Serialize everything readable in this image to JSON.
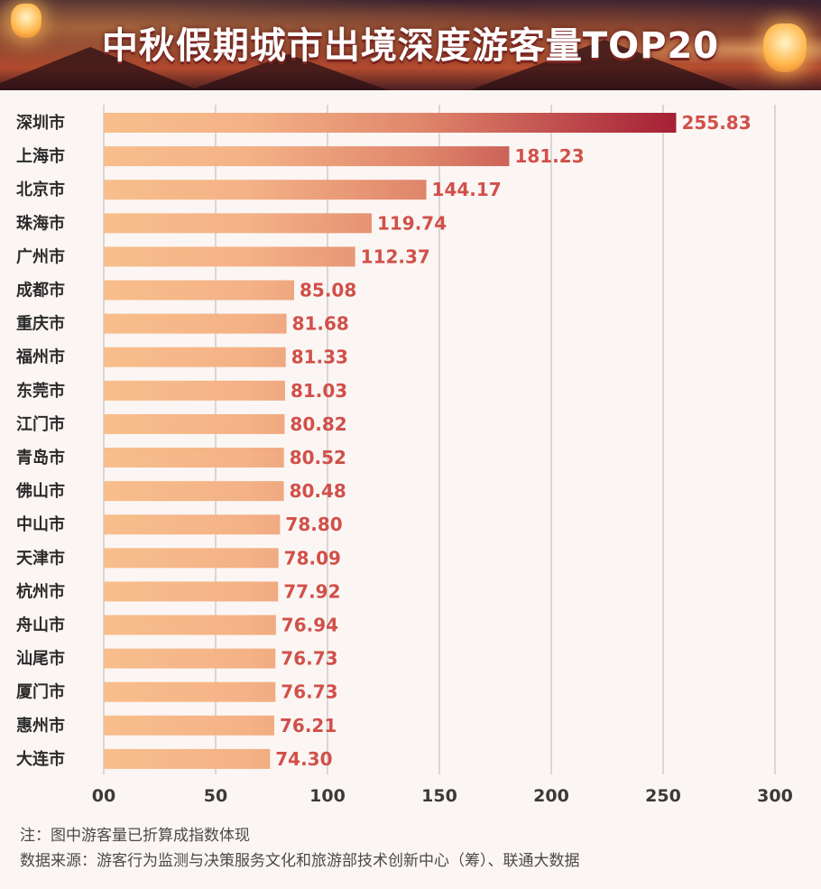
{
  "title": "中秋假期城市出境深度游客量TOP20",
  "colors": {
    "bar_light": "#f8be8c",
    "bar_dark": "#a51f35",
    "value_text": "#d1504a",
    "grid": "#dcd6d3"
  },
  "chart_data": {
    "type": "bar",
    "orientation": "horizontal",
    "title": "中秋假期城市出境深度游客量TOP20",
    "categories": [
      "深圳市",
      "上海市",
      "北京市",
      "珠海市",
      "广州市",
      "成都市",
      "重庆市",
      "福州市",
      "东莞市",
      "江门市",
      "青岛市",
      "佛山市",
      "中山市",
      "天津市",
      "杭州市",
      "舟山市",
      "汕尾市",
      "厦门市",
      "惠州市",
      "大连市"
    ],
    "values": [
      255.83,
      181.23,
      144.17,
      119.74,
      112.37,
      85.08,
      81.68,
      81.33,
      81.03,
      80.82,
      80.52,
      80.48,
      78.8,
      78.09,
      77.92,
      76.94,
      76.73,
      76.73,
      76.21,
      74.3
    ],
    "value_labels": [
      "255.83",
      "181.23",
      "144.17",
      "119.74",
      "112.37",
      "85.08",
      "81.68",
      "81.33",
      "81.03",
      "80.82",
      "80.52",
      "80.48",
      "78.80",
      "78.09",
      "77.92",
      "76.94",
      "76.73",
      "76.73",
      "76.21",
      "74.30"
    ],
    "xlim": [
      0,
      300
    ],
    "xticks": [
      0,
      50,
      100,
      150,
      200,
      250,
      300
    ],
    "xtick_labels": [
      "00",
      "50",
      "100",
      "150",
      "200",
      "250",
      "300"
    ],
    "grid": true,
    "legend": "none"
  },
  "notes": {
    "note": "注：图中游客量已折算成指数体现",
    "source": "数据来源：游客行为监测与决策服务文化和旅游部技术创新中心（筹）、联通大数据"
  }
}
